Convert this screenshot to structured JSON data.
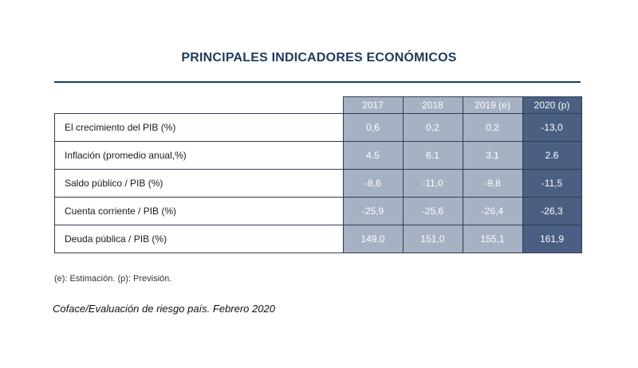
{
  "title": "PRINCIPALES INDICADORES ECONÓMICOS",
  "table": {
    "columns": [
      "2017",
      "2018",
      "2019 (e)",
      "2020 (p)"
    ],
    "rows": [
      {
        "label": "El crecimiento del PIB (%)",
        "values": [
          "0,6",
          "0,2",
          "0,2",
          "-13,0"
        ]
      },
      {
        "label": "Inflación (promedio anual,%)",
        "values": [
          "4.5",
          "6.1",
          "3.1",
          "2.6"
        ]
      },
      {
        "label": "Saldo público / PIB (%)",
        "values": [
          "-8,6",
          "-11,0",
          "-9,8",
          "-11,5"
        ]
      },
      {
        "label": "Cuenta corriente / PIB (%)",
        "values": [
          "-25,9",
          "-25,6",
          "-26,4",
          "-26,3"
        ]
      },
      {
        "label": "Deuda pública / PIB (%)",
        "values": [
          "149,0",
          "151,0",
          "155,1",
          "161,9"
        ]
      }
    ]
  },
  "footnote": "(e): Estimación. (p): Previsión.",
  "source": "Coface/Evaluación de riesgo país. Febrero 2020",
  "colors": {
    "title": "#1f3a5c",
    "header_light": "#a6b1c3",
    "header_dark": "#4a5f82"
  }
}
